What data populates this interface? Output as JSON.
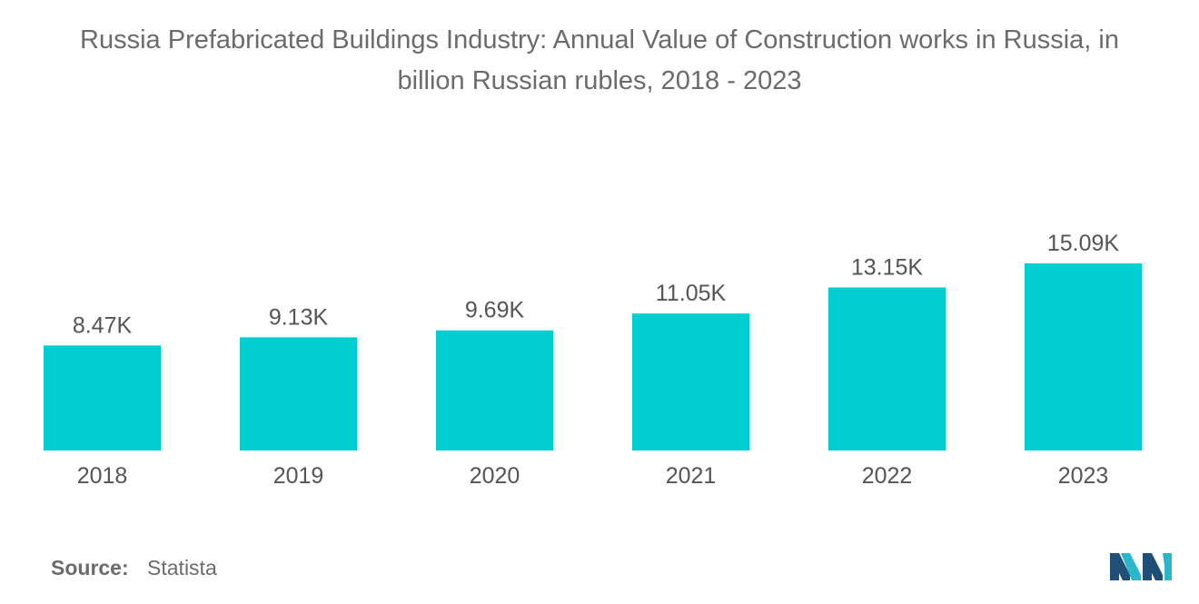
{
  "title_line1": "Russia Prefabricated Buildings Industry: Annual Value of Construction works in Russia, in",
  "title_line2": "billion Russian rubles, 2018 - 2023",
  "source_label": "Source:",
  "source_value": "Statista",
  "logo_icon": "mordor-intelligence-logo-icon",
  "colors": {
    "bar": "#00CED1",
    "text": "#555555",
    "title": "#6b6b6b",
    "logo_dark": "#1f4e79",
    "logo_light": "#2bb7c9"
  },
  "chart_data": {
    "type": "bar",
    "title": "Russia Prefabricated Buildings Industry: Annual Value of Construction works in Russia, in billion Russian rubles, 2018 - 2023",
    "categories": [
      "2018",
      "2019",
      "2020",
      "2021",
      "2022",
      "2023"
    ],
    "values": [
      8470,
      9130,
      9690,
      11050,
      13150,
      15090
    ],
    "value_labels": [
      "8.47K",
      "9.13K",
      "9.69K",
      "11.05K",
      "13.15K",
      "15.09K"
    ],
    "xlabel": "",
    "ylabel": "",
    "ylim": [
      0,
      15090
    ],
    "grid": false,
    "legend": "none"
  }
}
